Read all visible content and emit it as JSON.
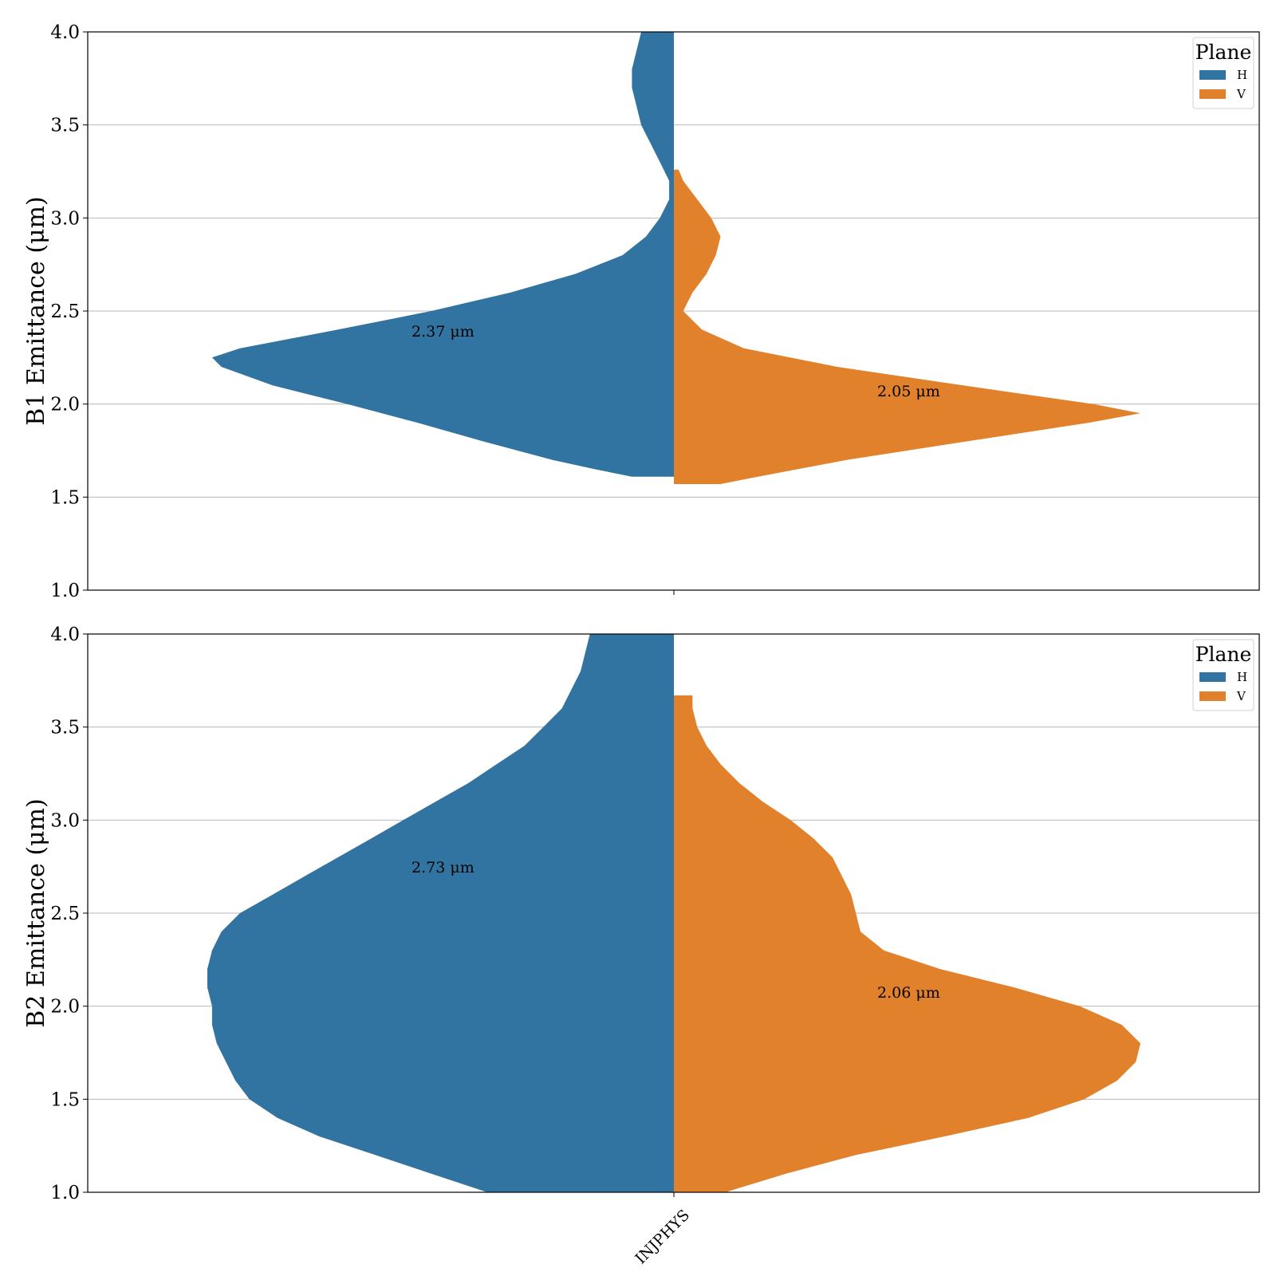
{
  "chart_data": [
    {
      "type": "violin",
      "ylabel": "B1 Emittance (μm)",
      "ylim": [
        1.0,
        4.0
      ],
      "yticks": [
        "1.0",
        "1.5",
        "2.0",
        "2.5",
        "3.0",
        "3.5",
        "4.0"
      ],
      "categories": [
        "INJPHYS"
      ],
      "split": true,
      "grid": "y",
      "legend": {
        "title": "Plane",
        "placement": "top-right",
        "entries": [
          "H",
          "V"
        ]
      },
      "series": [
        {
          "name": "H",
          "color": "#3274a1",
          "side": "left",
          "median_label": "2.37 μm",
          "median": 2.37,
          "y_range": [
            1.61,
            4.0
          ],
          "density_profile": [
            [
              1.61,
              0.09
            ],
            [
              1.65,
              0.17
            ],
            [
              1.7,
              0.26
            ],
            [
              1.8,
              0.41
            ],
            [
              1.9,
              0.55
            ],
            [
              2.0,
              0.7
            ],
            [
              2.1,
              0.86
            ],
            [
              2.2,
              0.97
            ],
            [
              2.25,
              0.99
            ],
            [
              2.3,
              0.93
            ],
            [
              2.4,
              0.72
            ],
            [
              2.5,
              0.52
            ],
            [
              2.6,
              0.35
            ],
            [
              2.7,
              0.21
            ],
            [
              2.8,
              0.11
            ],
            [
              2.9,
              0.06
            ],
            [
              3.0,
              0.03
            ],
            [
              3.1,
              0.01
            ],
            [
              3.2,
              0.01
            ],
            [
              3.3,
              0.03
            ],
            [
              3.4,
              0.05
            ],
            [
              3.5,
              0.07
            ],
            [
              3.6,
              0.08
            ],
            [
              3.7,
              0.09
            ],
            [
              3.8,
              0.09
            ],
            [
              3.9,
              0.08
            ],
            [
              4.0,
              0.07
            ]
          ]
        },
        {
          "name": "V",
          "color": "#e1812c",
          "side": "right",
          "median_label": "2.05 μm",
          "median": 2.05,
          "y_range": [
            1.57,
            3.26
          ],
          "density_profile": [
            [
              1.57,
              0.1
            ],
            [
              1.6,
              0.16
            ],
            [
              1.7,
              0.37
            ],
            [
              1.8,
              0.63
            ],
            [
              1.9,
              0.89
            ],
            [
              1.95,
              1.0
            ],
            [
              2.0,
              0.9
            ],
            [
              2.1,
              0.62
            ],
            [
              2.2,
              0.35
            ],
            [
              2.3,
              0.15
            ],
            [
              2.4,
              0.06
            ],
            [
              2.5,
              0.02
            ],
            [
              2.6,
              0.04
            ],
            [
              2.7,
              0.07
            ],
            [
              2.8,
              0.09
            ],
            [
              2.9,
              0.1
            ],
            [
              3.0,
              0.08
            ],
            [
              3.1,
              0.05
            ],
            [
              3.2,
              0.02
            ],
            [
              3.26,
              0.01
            ]
          ]
        }
      ]
    },
    {
      "type": "violin",
      "ylabel": "B2 Emittance (μm)",
      "ylim": [
        1.0,
        4.0
      ],
      "yticks": [
        "1.0",
        "1.5",
        "2.0",
        "2.5",
        "3.0",
        "3.5",
        "4.0"
      ],
      "categories": [
        "INJPHYS"
      ],
      "split": true,
      "grid": "y",
      "legend": {
        "title": "Plane",
        "placement": "top-right",
        "entries": [
          "H",
          "V"
        ]
      },
      "series": [
        {
          "name": "H",
          "color": "#3274a1",
          "side": "left",
          "median_label": "2.73 μm",
          "median": 2.73,
          "y_range": [
            1.0,
            4.0
          ],
          "density_profile": [
            [
              1.0,
              0.4
            ],
            [
              1.1,
              0.52
            ],
            [
              1.2,
              0.64
            ],
            [
              1.3,
              0.76
            ],
            [
              1.4,
              0.85
            ],
            [
              1.5,
              0.91
            ],
            [
              1.6,
              0.94
            ],
            [
              1.7,
              0.96
            ],
            [
              1.8,
              0.98
            ],
            [
              1.9,
              0.99
            ],
            [
              2.0,
              0.99
            ],
            [
              2.1,
              1.0
            ],
            [
              2.2,
              1.0
            ],
            [
              2.3,
              0.99
            ],
            [
              2.4,
              0.97
            ],
            [
              2.5,
              0.93
            ],
            [
              2.6,
              0.86
            ],
            [
              2.7,
              0.79
            ],
            [
              2.8,
              0.72
            ],
            [
              2.9,
              0.65
            ],
            [
              3.0,
              0.58
            ],
            [
              3.1,
              0.51
            ],
            [
              3.2,
              0.44
            ],
            [
              3.3,
              0.38
            ],
            [
              3.4,
              0.32
            ],
            [
              3.5,
              0.28
            ],
            [
              3.6,
              0.24
            ],
            [
              3.7,
              0.22
            ],
            [
              3.8,
              0.2
            ],
            [
              3.9,
              0.19
            ],
            [
              4.0,
              0.18
            ]
          ]
        },
        {
          "name": "V",
          "color": "#e1812c",
          "side": "right",
          "median_label": "2.06 μm",
          "median": 2.06,
          "y_range": [
            1.0,
            3.67
          ],
          "density_profile": [
            [
              1.0,
              0.11
            ],
            [
              1.1,
              0.24
            ],
            [
              1.2,
              0.39
            ],
            [
              1.3,
              0.58
            ],
            [
              1.4,
              0.76
            ],
            [
              1.5,
              0.88
            ],
            [
              1.6,
              0.95
            ],
            [
              1.7,
              0.99
            ],
            [
              1.8,
              1.0
            ],
            [
              1.9,
              0.96
            ],
            [
              2.0,
              0.87
            ],
            [
              2.1,
              0.73
            ],
            [
              2.2,
              0.57
            ],
            [
              2.3,
              0.45
            ],
            [
              2.4,
              0.4
            ],
            [
              2.5,
              0.39
            ],
            [
              2.6,
              0.38
            ],
            [
              2.7,
              0.36
            ],
            [
              2.8,
              0.34
            ],
            [
              2.9,
              0.3
            ],
            [
              3.0,
              0.25
            ],
            [
              3.1,
              0.19
            ],
            [
              3.2,
              0.14
            ],
            [
              3.3,
              0.1
            ],
            [
              3.4,
              0.07
            ],
            [
              3.5,
              0.05
            ],
            [
              3.6,
              0.04
            ],
            [
              3.67,
              0.04
            ]
          ]
        }
      ]
    }
  ]
}
